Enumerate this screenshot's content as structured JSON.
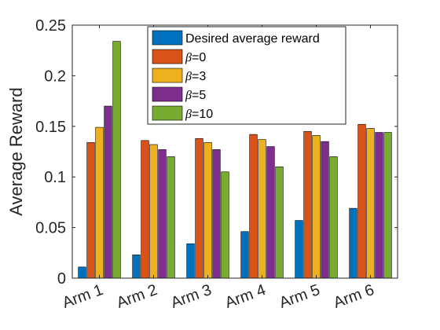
{
  "chart_data": {
    "type": "bar",
    "categories": [
      "Arm 1",
      "Arm 2",
      "Arm 3",
      "Arm 4",
      "Arm 5",
      "Arm 6"
    ],
    "ylabel": "Average Reward",
    "xlabel": "",
    "ylim": [
      0,
      0.25
    ],
    "yticks": [
      "0",
      "0.05",
      "0.1",
      "0.15",
      "0.2",
      "0.25"
    ],
    "grid": false,
    "legend_position": "top-right",
    "series": [
      {
        "name": "Desired average reward",
        "color": "#0072BD",
        "values": [
          0.011,
          0.023,
          0.034,
          0.046,
          0.057,
          0.069
        ]
      },
      {
        "name": "β=0",
        "label_parts": [
          "β",
          "=0"
        ],
        "color": "#D95319",
        "values": [
          0.134,
          0.136,
          0.138,
          0.142,
          0.145,
          0.152
        ]
      },
      {
        "name": "β=3",
        "label_parts": [
          "β",
          "=3"
        ],
        "color": "#EDB120",
        "values": [
          0.149,
          0.132,
          0.134,
          0.137,
          0.141,
          0.148
        ]
      },
      {
        "name": "β=5",
        "label_parts": [
          "β",
          "=5"
        ],
        "color": "#7E2F8E",
        "values": [
          0.17,
          0.127,
          0.127,
          0.13,
          0.135,
          0.144
        ]
      },
      {
        "name": "β=10",
        "label_parts": [
          "β",
          "=10"
        ],
        "color": "#77AC30",
        "values": [
          0.234,
          0.12,
          0.105,
          0.11,
          0.12,
          0.144
        ]
      }
    ]
  }
}
